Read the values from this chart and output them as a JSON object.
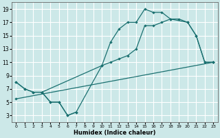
{
  "xlabel": "Humidex (Indice chaleur)",
  "xlim": [
    -0.5,
    23.5
  ],
  "ylim": [
    2,
    20
  ],
  "xticks": [
    0,
    1,
    2,
    3,
    4,
    5,
    6,
    7,
    8,
    9,
    10,
    11,
    12,
    13,
    14,
    15,
    16,
    17,
    18,
    19,
    20,
    21,
    22,
    23
  ],
  "yticks": [
    3,
    5,
    7,
    9,
    11,
    13,
    15,
    17,
    19
  ],
  "bg_color": "#cce8e8",
  "line_color": "#1a7070",
  "grid_color": "#b0d0d0",
  "smooth_line": {
    "x": [
      0,
      1,
      2,
      3,
      10,
      11,
      12,
      13,
      14,
      15,
      16,
      17,
      18,
      20,
      21,
      22,
      23
    ],
    "y": [
      8,
      7,
      6.5,
      6.5,
      10.5,
      11,
      11.5,
      12,
      13,
      16.5,
      16.5,
      17,
      17.5,
      17,
      15,
      11,
      11
    ]
  },
  "zigzag_line": {
    "x": [
      3,
      4,
      5,
      6,
      7,
      10,
      11,
      12,
      13,
      14,
      15,
      16,
      17,
      18,
      19,
      20,
      21,
      22,
      23
    ],
    "y": [
      6.5,
      5,
      5,
      3,
      3.5,
      10.5,
      14,
      16,
      17,
      17,
      19,
      18.5,
      18.5,
      17.5,
      17.5,
      17,
      15,
      11,
      11
    ]
  },
  "diagonal_line": {
    "x": [
      0,
      23
    ],
    "y": [
      5.5,
      11
    ]
  },
  "left_segment": {
    "x": [
      0,
      1,
      2,
      3,
      4,
      5,
      6,
      7
    ],
    "y": [
      8,
      7,
      6.5,
      6.5,
      5,
      5,
      3,
      3.5
    ]
  }
}
